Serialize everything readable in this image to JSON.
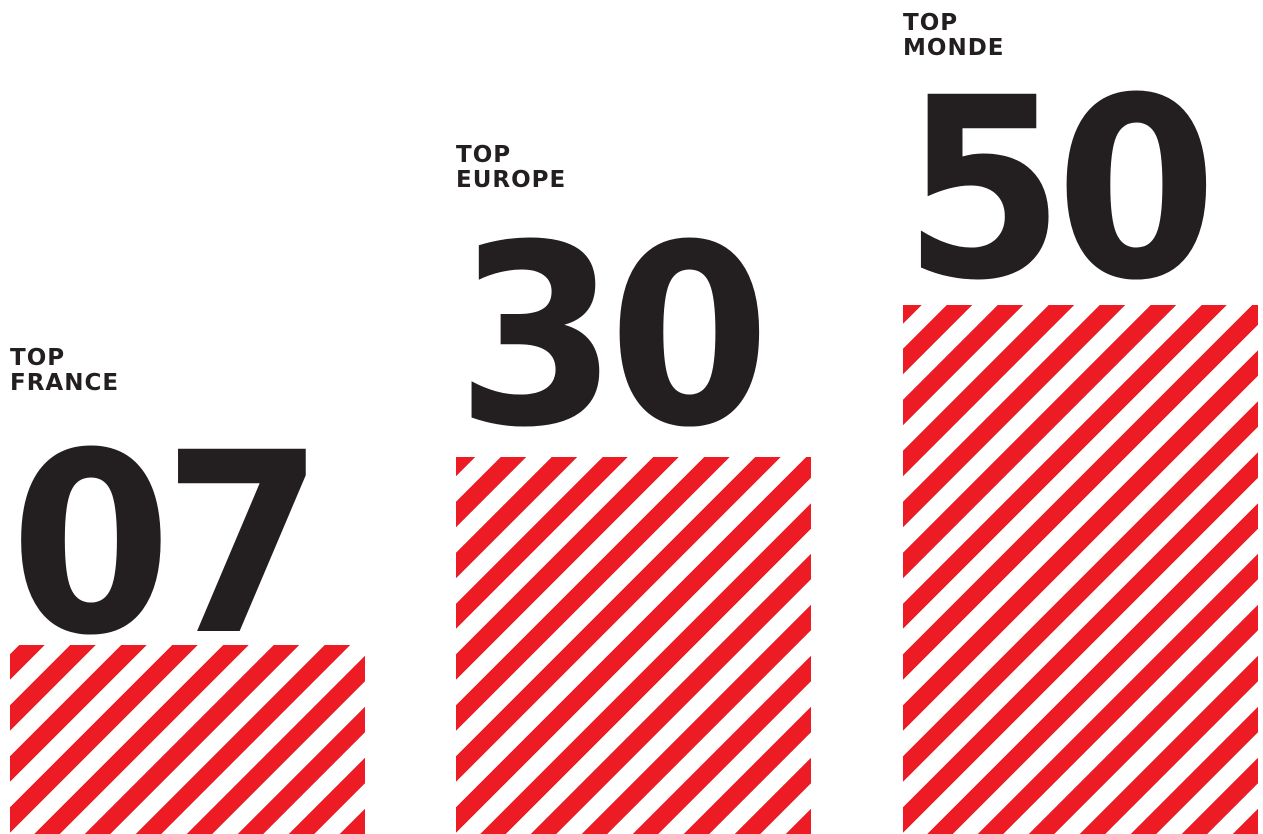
{
  "chart_data": {
    "type": "bar",
    "categories": [
      "TOP FRANCE",
      "TOP EUROPE",
      "TOP MONDE"
    ],
    "values": [
      7,
      30,
      50
    ],
    "labels": [
      {
        "line1": "TOP",
        "line2": "FRANCE",
        "value_text": "07"
      },
      {
        "line1": "TOP",
        "line2": "EUROPE",
        "value_text": "30"
      },
      {
        "line1": "TOP",
        "line2": "MONDE",
        "value_text": "50"
      }
    ],
    "bar_pattern": "diagonal-stripes",
    "colors": {
      "bar_red": "#ed1c24",
      "bar_white": "#ffffff",
      "text": "#231f20"
    },
    "title": "",
    "xlabel": "",
    "ylabel": "",
    "grid": false
  }
}
